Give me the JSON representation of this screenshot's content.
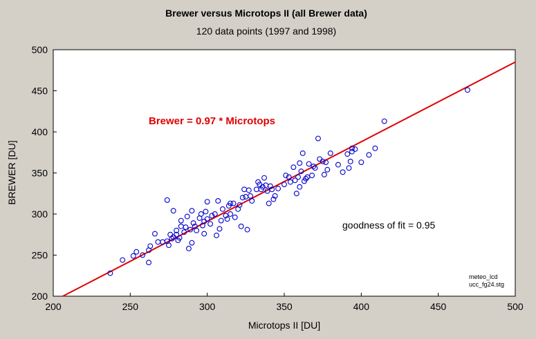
{
  "chart_data": {
    "type": "scatter",
    "title": "Brewer versus Microtops II (all Brewer data)",
    "subtitle": "120 data points  (1997 and 1998)",
    "xlabel": "Microtops II [DU]",
    "ylabel": "BREWER [DU]",
    "xlim": [
      200,
      500
    ],
    "ylim": [
      200,
      500
    ],
    "xticks": [
      200,
      250,
      300,
      350,
      400,
      450,
      500
    ],
    "yticks": [
      200,
      250,
      300,
      350,
      400,
      450,
      500
    ],
    "grid": false,
    "colors": {
      "points": "#0000cc",
      "fit_line": "#e00000",
      "plot_background": "#ffffff"
    },
    "fit_line": {
      "slope": 0.97,
      "intercept": 0
    },
    "equation_label": "Brewer = 0.97 * Microtops",
    "goodness_label": "goodness of fit = 0.95",
    "corner_notes": [
      "meteo_lcd",
      "ucc_fg24.stg"
    ],
    "points": [
      [
        237,
        228
      ],
      [
        245,
        244
      ],
      [
        252,
        249
      ],
      [
        254,
        254
      ],
      [
        258,
        250
      ],
      [
        262,
        241
      ],
      [
        262,
        256
      ],
      [
        263,
        261
      ],
      [
        266,
        276
      ],
      [
        268,
        266
      ],
      [
        271,
        266
      ],
      [
        274,
        317
      ],
      [
        274,
        267
      ],
      [
        275,
        262
      ],
      [
        276,
        275
      ],
      [
        277,
        270
      ],
      [
        278,
        272
      ],
      [
        278,
        304
      ],
      [
        280,
        275
      ],
      [
        280,
        280
      ],
      [
        281,
        268
      ],
      [
        282,
        271
      ],
      [
        283,
        285
      ],
      [
        283,
        292
      ],
      [
        285,
        278
      ],
      [
        286,
        284
      ],
      [
        287,
        297
      ],
      [
        288,
        258
      ],
      [
        289,
        281
      ],
      [
        290,
        265
      ],
      [
        290,
        304
      ],
      [
        291,
        289
      ],
      [
        292,
        285
      ],
      [
        293,
        280
      ],
      [
        295,
        295
      ],
      [
        296,
        300
      ],
      [
        297,
        286
      ],
      [
        298,
        291
      ],
      [
        298,
        276
      ],
      [
        299,
        303
      ],
      [
        300,
        315
      ],
      [
        300,
        294
      ],
      [
        302,
        288
      ],
      [
        303,
        298
      ],
      [
        305,
        300
      ],
      [
        306,
        274
      ],
      [
        307,
        316
      ],
      [
        308,
        282
      ],
      [
        309,
        292
      ],
      [
        310,
        306
      ],
      [
        312,
        298
      ],
      [
        313,
        294
      ],
      [
        314,
        310
      ],
      [
        315,
        300
      ],
      [
        315,
        313
      ],
      [
        317,
        313
      ],
      [
        318,
        296
      ],
      [
        320,
        306
      ],
      [
        321,
        311
      ],
      [
        322,
        285
      ],
      [
        323,
        320
      ],
      [
        324,
        330
      ],
      [
        325,
        321
      ],
      [
        326,
        281
      ],
      [
        327,
        329
      ],
      [
        328,
        322
      ],
      [
        329,
        316
      ],
      [
        332,
        330
      ],
      [
        333,
        339
      ],
      [
        334,
        336
      ],
      [
        335,
        330
      ],
      [
        336,
        333
      ],
      [
        337,
        344
      ],
      [
        338,
        335
      ],
      [
        339,
        328
      ],
      [
        340,
        313
      ],
      [
        341,
        334
      ],
      [
        342,
        330
      ],
      [
        343,
        318
      ],
      [
        344,
        322
      ],
      [
        346,
        331
      ],
      [
        350,
        336
      ],
      [
        351,
        347
      ],
      [
        353,
        345
      ],
      [
        354,
        339
      ],
      [
        356,
        357
      ],
      [
        357,
        341
      ],
      [
        358,
        325
      ],
      [
        359,
        345
      ],
      [
        360,
        362
      ],
      [
        360,
        333
      ],
      [
        361,
        352
      ],
      [
        362,
        374
      ],
      [
        363,
        340
      ],
      [
        364,
        343
      ],
      [
        365,
        345
      ],
      [
        366,
        361
      ],
      [
        368,
        347
      ],
      [
        369,
        358
      ],
      [
        370,
        356
      ],
      [
        372,
        392
      ],
      [
        373,
        367
      ],
      [
        375,
        364
      ],
      [
        376,
        348
      ],
      [
        377,
        363
      ],
      [
        378,
        354
      ],
      [
        380,
        374
      ],
      [
        385,
        360
      ],
      [
        388,
        351
      ],
      [
        391,
        373
      ],
      [
        392,
        356
      ],
      [
        393,
        364
      ],
      [
        394,
        376
      ],
      [
        394,
        380
      ],
      [
        396,
        379
      ],
      [
        400,
        363
      ],
      [
        405,
        372
      ],
      [
        409,
        380
      ],
      [
        415,
        413
      ],
      [
        469,
        451
      ]
    ]
  }
}
